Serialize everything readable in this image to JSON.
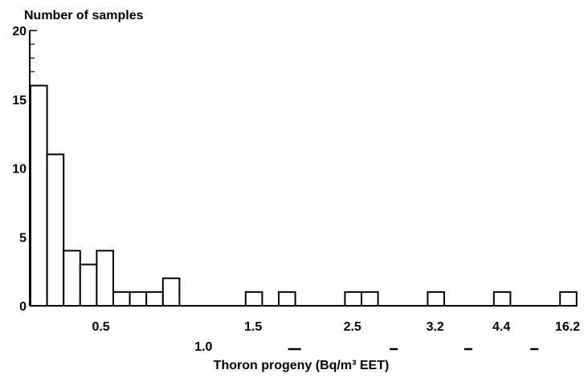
{
  "chart_data": {
    "type": "bar",
    "ylabel": "Number of samples",
    "xlabel": "Thoron progeny (Bq/m³ EET)",
    "ylim": [
      0,
      20
    ],
    "yticks": [
      0,
      5,
      10,
      15,
      20
    ],
    "ytick_labels": [
      "0",
      "5",
      "10",
      "15",
      "20"
    ],
    "bins": [
      {
        "index": 0,
        "value": 16
      },
      {
        "index": 1,
        "value": 11
      },
      {
        "index": 2,
        "value": 4
      },
      {
        "index": 3,
        "value": 3
      },
      {
        "index": 4,
        "value": 4
      },
      {
        "index": 5,
        "value": 1
      },
      {
        "index": 6,
        "value": 1
      },
      {
        "index": 7,
        "value": 1
      },
      {
        "index": 8,
        "value": 2
      },
      {
        "index": 13,
        "value": 1
      },
      {
        "index": 15,
        "value": 1
      },
      {
        "index": 19,
        "value": 1
      },
      {
        "index": 20,
        "value": 1
      },
      {
        "index": 24,
        "value": 1
      },
      {
        "index": 28,
        "value": 1
      },
      {
        "index": 32,
        "value": 1
      }
    ],
    "x_tick_labels": [
      "0.5",
      "1.0",
      "1.5",
      "2.5",
      "3.2",
      "4.4",
      "16.2"
    ],
    "grid": false
  }
}
